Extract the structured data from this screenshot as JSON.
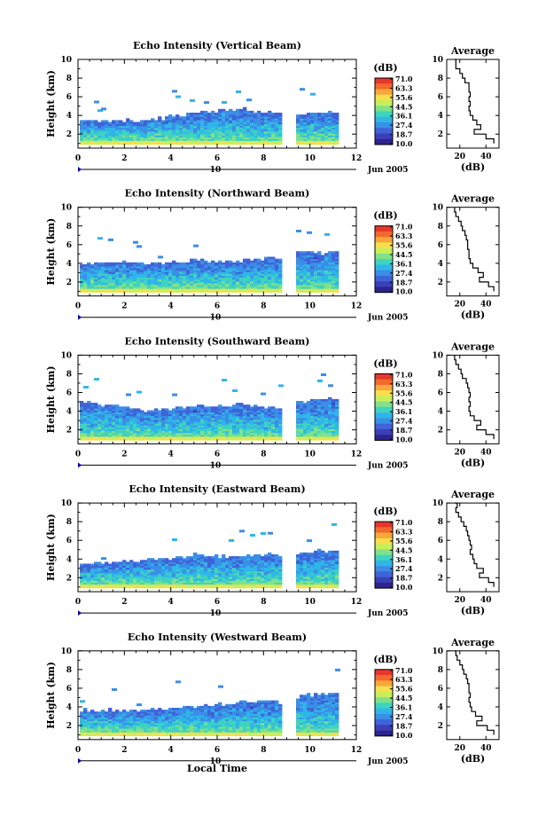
{
  "figure": {
    "xlabel": "Local Time",
    "unit_label": "(dB)",
    "date_label": "Jun 2005",
    "day_label": "10",
    "avg_title": "Average",
    "avg_xlabel": "(dB)",
    "ylabel": "Height (km)"
  },
  "colorbar": {
    "ticks": [
      "71.0",
      "63.3",
      "55.6",
      "44.5",
      "36.1",
      "27.4",
      "18.7",
      "10.0"
    ],
    "colors": [
      "#e6372a",
      "#f26a2c",
      "#f8a73a",
      "#f7de4c",
      "#c9ee5a",
      "#7fe28a",
      "#3fd3c0",
      "#2fb6e8",
      "#3a8ee6",
      "#3f63d8",
      "#3b3fb8",
      "#2d238f"
    ]
  },
  "panels": [
    {
      "title": "Echo Intensity (Vertical Beam)",
      "avg_ticks": [
        "20",
        "40"
      ]
    },
    {
      "title": "Echo Intensity (Northward Beam)",
      "avg_ticks": [
        "20",
        "40"
      ]
    },
    {
      "title": "Echo Intensity (Southward Beam)",
      "avg_ticks": [
        "20",
        "40"
      ]
    },
    {
      "title": "Echo Intensity (Eastward Beam)",
      "avg_ticks": [
        "20",
        "40"
      ]
    },
    {
      "title": "Echo Intensity (Westward Beam)",
      "avg_ticks": [
        "20",
        "40"
      ]
    }
  ],
  "chart_data": [
    {
      "type": "heatmap",
      "title": "Echo Intensity (Vertical Beam)",
      "xlabel": "Local Time",
      "ylabel": "Height (km)",
      "xlim": [
        0,
        12
      ],
      "ylim": [
        0.5,
        10
      ],
      "x_ticks": [
        0,
        2,
        4,
        6,
        8,
        10,
        12
      ],
      "y_ticks": [
        2,
        4,
        6,
        8,
        10
      ],
      "colorbar_label": "(dB)",
      "colorbar_range": [
        10.0,
        71.0
      ],
      "data_gap_hours": [
        8.9,
        9.3
      ],
      "echo_top_km": [
        [
          0.0,
          3.4
        ],
        [
          1.0,
          3.3
        ],
        [
          2.0,
          3.5
        ],
        [
          3.0,
          3.4
        ],
        [
          4.0,
          3.8
        ],
        [
          5.0,
          4.1
        ],
        [
          6.0,
          4.5
        ],
        [
          7.0,
          4.6
        ],
        [
          8.0,
          4.3
        ],
        [
          8.9,
          4.0
        ],
        [
          9.3,
          3.9
        ],
        [
          10.0,
          4.2
        ],
        [
          11.3,
          4.3
        ]
      ],
      "average_profile": {
        "title": "Average",
        "xlabel": "(dB)",
        "xlim": [
          10,
          50
        ],
        "x_ticks": [
          20,
          40
        ],
        "ylim": [
          0.5,
          10
        ],
        "height_km": [
          1.0,
          1.5,
          2.0,
          2.5,
          3.0,
          3.5,
          4.0,
          4.5,
          5.0,
          5.5,
          6.0,
          6.5,
          7.0,
          7.5,
          8.0,
          8.5,
          9.0,
          9.5,
          10.0
        ],
        "db": [
          46,
          40,
          31,
          36,
          33,
          30,
          28,
          27,
          28,
          27,
          28,
          27,
          27,
          24,
          22,
          20,
          17,
          17,
          16
        ]
      }
    },
    {
      "type": "heatmap",
      "title": "Echo Intensity (Northward Beam)",
      "xlabel": "Local Time",
      "ylabel": "Height (km)",
      "xlim": [
        0,
        12
      ],
      "ylim": [
        0.5,
        10
      ],
      "x_ticks": [
        0,
        2,
        4,
        6,
        8,
        10,
        12
      ],
      "y_ticks": [
        2,
        4,
        6,
        8,
        10
      ],
      "colorbar_label": "(dB)",
      "colorbar_range": [
        10.0,
        71.0
      ],
      "data_gap_hours": [
        8.9,
        9.3
      ],
      "echo_top_km": [
        [
          0.0,
          4.0
        ],
        [
          1.0,
          3.9
        ],
        [
          2.0,
          4.1
        ],
        [
          3.0,
          3.9
        ],
        [
          4.0,
          4.0
        ],
        [
          5.0,
          4.3
        ],
        [
          6.0,
          4.0
        ],
        [
          7.0,
          4.2
        ],
        [
          8.0,
          4.4
        ],
        [
          8.9,
          4.6
        ],
        [
          9.3,
          5.2
        ],
        [
          10.0,
          5.0
        ],
        [
          11.3,
          5.1
        ]
      ],
      "average_profile": {
        "title": "Average",
        "xlabel": "(dB)",
        "xlim": [
          10,
          50
        ],
        "x_ticks": [
          20,
          40
        ],
        "ylim": [
          0.5,
          10
        ],
        "height_km": [
          1.0,
          1.5,
          2.0,
          2.5,
          3.0,
          3.5,
          4.0,
          4.5,
          5.0,
          5.5,
          6.0,
          6.5,
          7.0,
          7.5,
          8.0,
          8.5,
          9.0,
          9.5,
          10.0
        ],
        "db": [
          46,
          42,
          35,
          38,
          34,
          30,
          28,
          27,
          27,
          26,
          26,
          25,
          24,
          22,
          21,
          19,
          17,
          16,
          16
        ]
      }
    },
    {
      "type": "heatmap",
      "title": "Echo Intensity (Southward Beam)",
      "xlabel": "Local Time",
      "ylabel": "Height (km)",
      "xlim": [
        0,
        12
      ],
      "ylim": [
        0.5,
        10
      ],
      "x_ticks": [
        0,
        2,
        4,
        6,
        8,
        10,
        12
      ],
      "y_ticks": [
        2,
        4,
        6,
        8,
        10
      ],
      "colorbar_label": "(dB)",
      "colorbar_range": [
        10.0,
        71.0
      ],
      "data_gap_hours": [
        8.9,
        9.3
      ],
      "echo_top_km": [
        [
          0.0,
          5.0
        ],
        [
          1.0,
          4.6
        ],
        [
          2.0,
          4.4
        ],
        [
          3.0,
          4.0
        ],
        [
          4.0,
          4.2
        ],
        [
          5.0,
          4.4
        ],
        [
          6.0,
          4.5
        ],
        [
          7.0,
          4.6
        ],
        [
          8.0,
          4.4
        ],
        [
          8.9,
          4.3
        ],
        [
          9.3,
          4.8
        ],
        [
          10.0,
          5.0
        ],
        [
          11.3,
          5.2
        ]
      ],
      "average_profile": {
        "title": "Average",
        "xlabel": "(dB)",
        "xlim": [
          10,
          50
        ],
        "x_ticks": [
          20,
          40
        ],
        "ylim": [
          0.5,
          10
        ],
        "height_km": [
          1.0,
          1.5,
          2.0,
          2.5,
          3.0,
          3.5,
          4.0,
          4.5,
          5.0,
          5.5,
          6.0,
          6.5,
          7.0,
          7.5,
          8.0,
          8.5,
          9.0,
          9.5,
          10.0
        ],
        "db": [
          46,
          40,
          33,
          36,
          31,
          28,
          27,
          28,
          27,
          28,
          27,
          26,
          25,
          22,
          21,
          19,
          17,
          16,
          16
        ]
      }
    },
    {
      "type": "heatmap",
      "title": "Echo Intensity (Eastward Beam)",
      "xlabel": "Local Time",
      "ylabel": "Height (km)",
      "xlim": [
        0,
        12
      ],
      "ylim": [
        0.5,
        10
      ],
      "x_ticks": [
        0,
        2,
        4,
        6,
        8,
        10,
        12
      ],
      "y_ticks": [
        2,
        4,
        6,
        8,
        10
      ],
      "colorbar_label": "(dB)",
      "colorbar_range": [
        10.0,
        71.0
      ],
      "data_gap_hours": [
        8.9,
        9.3
      ],
      "echo_top_km": [
        [
          0.0,
          3.4
        ],
        [
          1.0,
          3.5
        ],
        [
          2.0,
          3.6
        ],
        [
          3.0,
          3.8
        ],
        [
          4.0,
          4.0
        ],
        [
          5.0,
          4.4
        ],
        [
          6.0,
          4.2
        ],
        [
          7.0,
          4.3
        ],
        [
          8.0,
          4.5
        ],
        [
          8.9,
          4.2
        ],
        [
          9.3,
          4.4
        ],
        [
          10.0,
          4.7
        ],
        [
          11.3,
          4.9
        ]
      ],
      "average_profile": {
        "title": "Average",
        "xlabel": "(dB)",
        "xlim": [
          10,
          50
        ],
        "x_ticks": [
          20,
          40
        ],
        "ylim": [
          0.5,
          10
        ],
        "height_km": [
          1.0,
          1.5,
          2.0,
          2.5,
          3.0,
          3.5,
          4.0,
          4.5,
          5.0,
          5.5,
          6.0,
          6.5,
          7.0,
          7.5,
          8.0,
          8.5,
          9.0,
          9.5,
          10.0
        ],
        "db": [
          46,
          42,
          35,
          38,
          33,
          31,
          30,
          28,
          29,
          28,
          27,
          26,
          25,
          23,
          21,
          19,
          17,
          18,
          16
        ]
      }
    },
    {
      "type": "heatmap",
      "title": "Echo Intensity (Westward Beam)",
      "xlabel": "Local Time",
      "ylabel": "Height (km)",
      "xlim": [
        0,
        12
      ],
      "ylim": [
        0.5,
        10
      ],
      "x_ticks": [
        0,
        2,
        4,
        6,
        8,
        10,
        12
      ],
      "y_ticks": [
        2,
        4,
        6,
        8,
        10
      ],
      "colorbar_label": "(dB)",
      "colorbar_range": [
        10.0,
        71.0
      ],
      "data_gap_hours": [
        8.9,
        9.3
      ],
      "echo_top_km": [
        [
          0.0,
          3.6
        ],
        [
          1.0,
          3.5
        ],
        [
          2.0,
          3.6
        ],
        [
          3.0,
          3.7
        ],
        [
          4.0,
          3.8
        ],
        [
          5.0,
          4.0
        ],
        [
          6.0,
          4.2
        ],
        [
          7.0,
          4.4
        ],
        [
          8.0,
          4.5
        ],
        [
          8.9,
          4.3
        ],
        [
          9.3,
          5.0
        ],
        [
          10.0,
          5.2
        ],
        [
          11.3,
          5.4
        ]
      ],
      "average_profile": {
        "title": "Average",
        "xlabel": "(dB)",
        "xlim": [
          10,
          50
        ],
        "x_ticks": [
          20,
          40
        ],
        "ylim": [
          0.5,
          10
        ],
        "height_km": [
          1.0,
          1.5,
          2.0,
          2.5,
          3.0,
          3.5,
          4.0,
          4.5,
          5.0,
          5.5,
          6.0,
          6.5,
          7.0,
          7.5,
          8.0,
          8.5,
          9.0,
          9.5,
          10.0
        ],
        "db": [
          46,
          41,
          33,
          37,
          32,
          29,
          28,
          27,
          28,
          27,
          27,
          26,
          25,
          23,
          22,
          20,
          18,
          17,
          16
        ]
      }
    }
  ]
}
